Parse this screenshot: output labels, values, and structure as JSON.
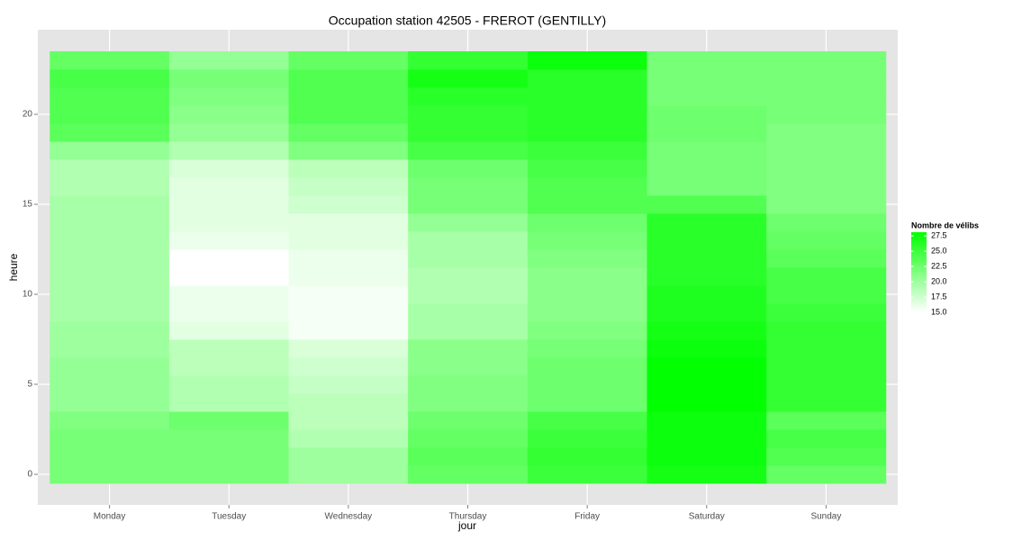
{
  "chart_data": {
    "type": "heatmap",
    "title": "Occupation station 42505 - FREROT (GENTILLY)",
    "x_label": "jour",
    "y_label": "heure",
    "categories": [
      "Monday",
      "Tuesday",
      "Wednesday",
      "Thursday",
      "Friday",
      "Saturday",
      "Sunday"
    ],
    "y": [
      0,
      1,
      2,
      3,
      4,
      5,
      6,
      7,
      8,
      9,
      10,
      11,
      12,
      13,
      14,
      15,
      16,
      17,
      18,
      19,
      20,
      21,
      22,
      23
    ],
    "values": [
      [
        22,
        22,
        22,
        21.5,
        20.5,
        20.5,
        20.5,
        20,
        20,
        19.5,
        19.5,
        19.5,
        19.5,
        19.5,
        19.5,
        19.5,
        19,
        19,
        20.5,
        23.5,
        24,
        24,
        24.5,
        23
      ],
      [
        22,
        22,
        22,
        22.5,
        19,
        19,
        18.5,
        18.5,
        16.5,
        16,
        16,
        15,
        15,
        16,
        16.5,
        16.5,
        16.5,
        17,
        19,
        20.5,
        21,
        21.5,
        22,
        20.5
      ],
      [
        20,
        20,
        19,
        18.5,
        18.5,
        18,
        17.5,
        17,
        15.5,
        15.5,
        15.5,
        16,
        16,
        16.5,
        16.5,
        17.5,
        18,
        18.5,
        21.5,
        23,
        24,
        24,
        24,
        23
      ],
      [
        23,
        23.5,
        23,
        22.5,
        21.5,
        21.5,
        21,
        21,
        19.5,
        19.5,
        19,
        19,
        19.5,
        19.5,
        20.5,
        22,
        22,
        22.5,
        24.5,
        25.5,
        25.5,
        26,
        27,
        25.5
      ],
      [
        25,
        25.5,
        25,
        24.5,
        22.5,
        22.5,
        22.5,
        22,
        21.5,
        21,
        21,
        21,
        21.5,
        22,
        22.5,
        24,
        24,
        24.5,
        25,
        26,
        26,
        26,
        26,
        27.5
      ],
      [
        27,
        27.5,
        27.5,
        27.5,
        28,
        28,
        28,
        27.5,
        27,
        26.5,
        26.5,
        26,
        26,
        26,
        26,
        24,
        22,
        22,
        22,
        22.5,
        22.5,
        22,
        22,
        22
      ],
      [
        23,
        24,
        24.5,
        23.5,
        25.5,
        25.5,
        25.5,
        25.5,
        25.5,
        25,
        24.5,
        24.5,
        23.5,
        23,
        22.5,
        21.5,
        21.5,
        21.5,
        21.5,
        21.5,
        22,
        22,
        22,
        22
      ]
    ],
    "ylim": [
      -1.7,
      24.7
    ],
    "yticks": [
      0,
      5,
      10,
      15,
      20
    ],
    "grid": true,
    "legend_title": "Nombre de vélibs",
    "colorbar": {
      "lim": [
        15,
        28.1
      ],
      "low": "#ffffff",
      "high": "#00ff00",
      "ticks": [
        {
          "value": 15,
          "label": "15.0"
        },
        {
          "value": 17.5,
          "label": "17.5"
        },
        {
          "value": 20,
          "label": "20.0"
        },
        {
          "value": 22.5,
          "label": "22.5"
        },
        {
          "value": 25,
          "label": "25.0"
        },
        {
          "value": 27.5,
          "label": "27.5"
        }
      ]
    }
  }
}
